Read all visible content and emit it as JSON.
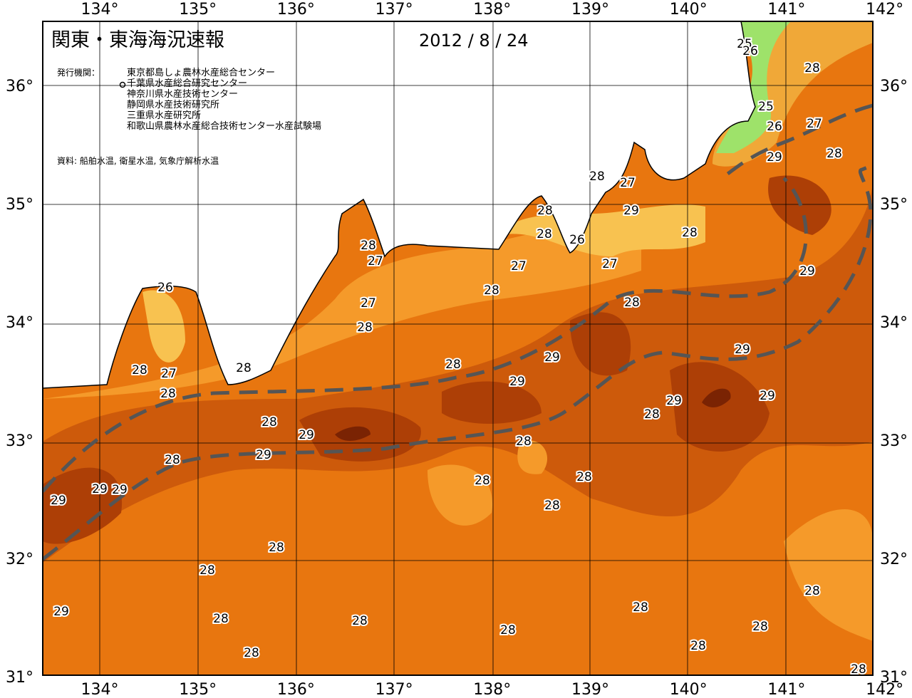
{
  "header": {
    "title": "関東・東海海況速報",
    "date": "2012 / 8 / 24",
    "agencies_label": "発行機関：",
    "agencies": [
      "東京都島しょ農林水産総合センター",
      "千葉県水産総合研究センター",
      "神奈川県水産技術センター",
      "静岡県水産技術研究所",
      "三重県水産研究所",
      "和歌山県農林水産総合技術センター水産試験場"
    ],
    "source": "資料: 船舶水温, 衛星水温, 気象庁解析水温"
  },
  "axes": {
    "longitude_labels": [
      "134°",
      "135°",
      "136°",
      "137°",
      "138°",
      "139°",
      "140°",
      "141°",
      "142°"
    ],
    "latitude_labels": [
      "36°",
      "35°",
      "34°",
      "33°",
      "32°",
      "31°"
    ]
  },
  "contour_labels": [
    "25",
    "26",
    "28",
    "25",
    "26",
    "27",
    "28",
    "29",
    "28",
    "27",
    "28",
    "29",
    "28",
    "26",
    "28",
    "28",
    "27",
    "27",
    "27",
    "29",
    "26",
    "28",
    "28",
    "27",
    "28",
    "29",
    "29",
    "28",
    "28",
    "28",
    "27",
    "29",
    "28",
    "29",
    "29",
    "28",
    "28",
    "29",
    "28",
    "29",
    "28",
    "28",
    "28",
    "29",
    "29",
    "29",
    "28",
    "28",
    "28",
    "28",
    "29",
    "28",
    "28",
    "28",
    "28",
    "28",
    "28",
    "28",
    "28"
  ]
}
